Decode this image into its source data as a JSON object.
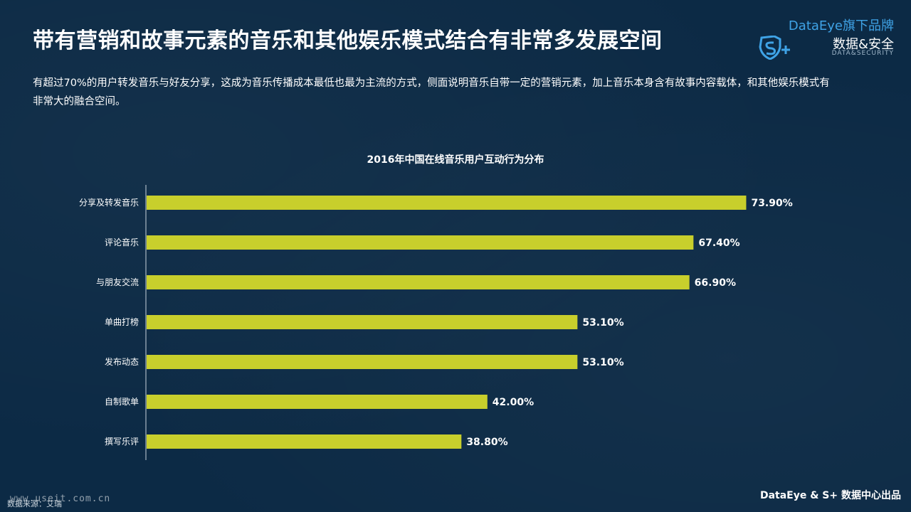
{
  "title": "带有营销和故事元素的音乐和其他娱乐模式结合有非常多发展空间",
  "brand": {
    "top_en": "DataEye",
    "top_cn": "旗下品牌",
    "name": "数据&安全",
    "sub": "DATA&SECURITY"
  },
  "description": "有超过70%的用户转发音乐与好友分享，这成为音乐传播成本最低也最为主流的方式，侧面说明音乐自带一定的营销元素，加上音乐本身含有故事内容载体，和其他娱乐模式有非常大的融合空间。",
  "chart_data": {
    "type": "bar",
    "orientation": "horizontal",
    "title": "2016年中国在线音乐用户互动行为分布",
    "categories": [
      "分享及转发音乐",
      "评论音乐",
      "与朋友交流",
      "单曲打榜",
      "发布动态",
      "自制歌单",
      "撰写乐评"
    ],
    "values": [
      73.9,
      67.4,
      66.9,
      53.1,
      53.1,
      42.0,
      38.8
    ],
    "value_labels": [
      "73.90%",
      "67.40%",
      "66.90%",
      "53.10%",
      "53.10%",
      "42.00%",
      "38.80%"
    ],
    "bar_color": "#c8cf2c",
    "grid": false,
    "legend": "none"
  },
  "footer": {
    "source": "数据来源：艾瑞",
    "watermark": "www.useit.com.cn",
    "credit": "DataEye & S+ 数据中心出品"
  }
}
